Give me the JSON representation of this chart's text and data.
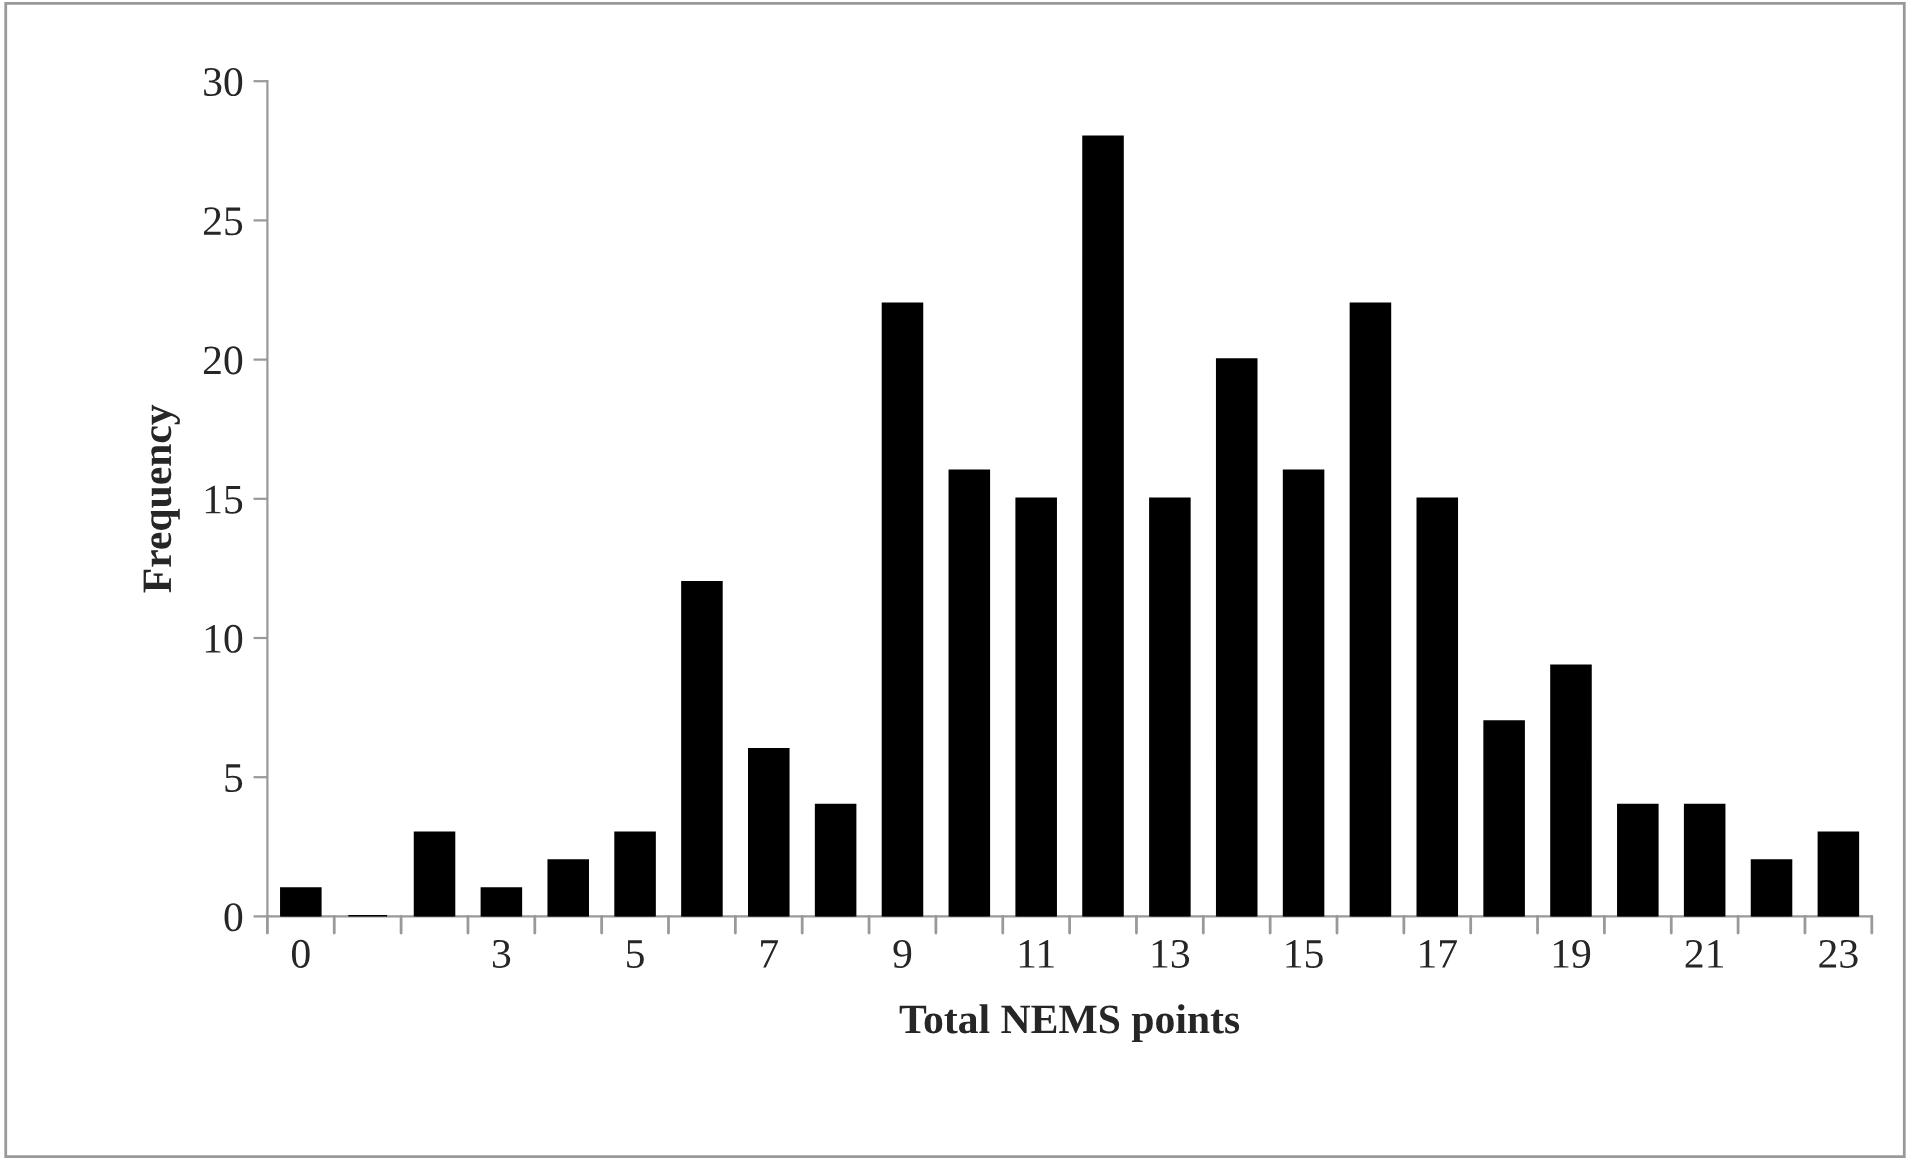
{
  "chart_data": {
    "type": "bar",
    "xlabel": "Total NEMS points",
    "ylabel": "Frequency",
    "categories": [
      "0",
      null,
      null,
      "3",
      null,
      "5",
      null,
      "7",
      null,
      "9",
      null,
      "11",
      null,
      "13",
      null,
      "15",
      null,
      "17",
      null,
      "19",
      null,
      "21",
      null,
      "23"
    ],
    "values": [
      1,
      0,
      3,
      1,
      2,
      3,
      12,
      6,
      4,
      22,
      16,
      15,
      28,
      15,
      20,
      16,
      22,
      15,
      7,
      9,
      4,
      4,
      2,
      3
    ],
    "color": "#000000",
    "ylim": [
      0,
      30
    ],
    "yticks": [
      0,
      5,
      10,
      15,
      20,
      25,
      30
    ],
    "grid": false,
    "legend": false
  }
}
